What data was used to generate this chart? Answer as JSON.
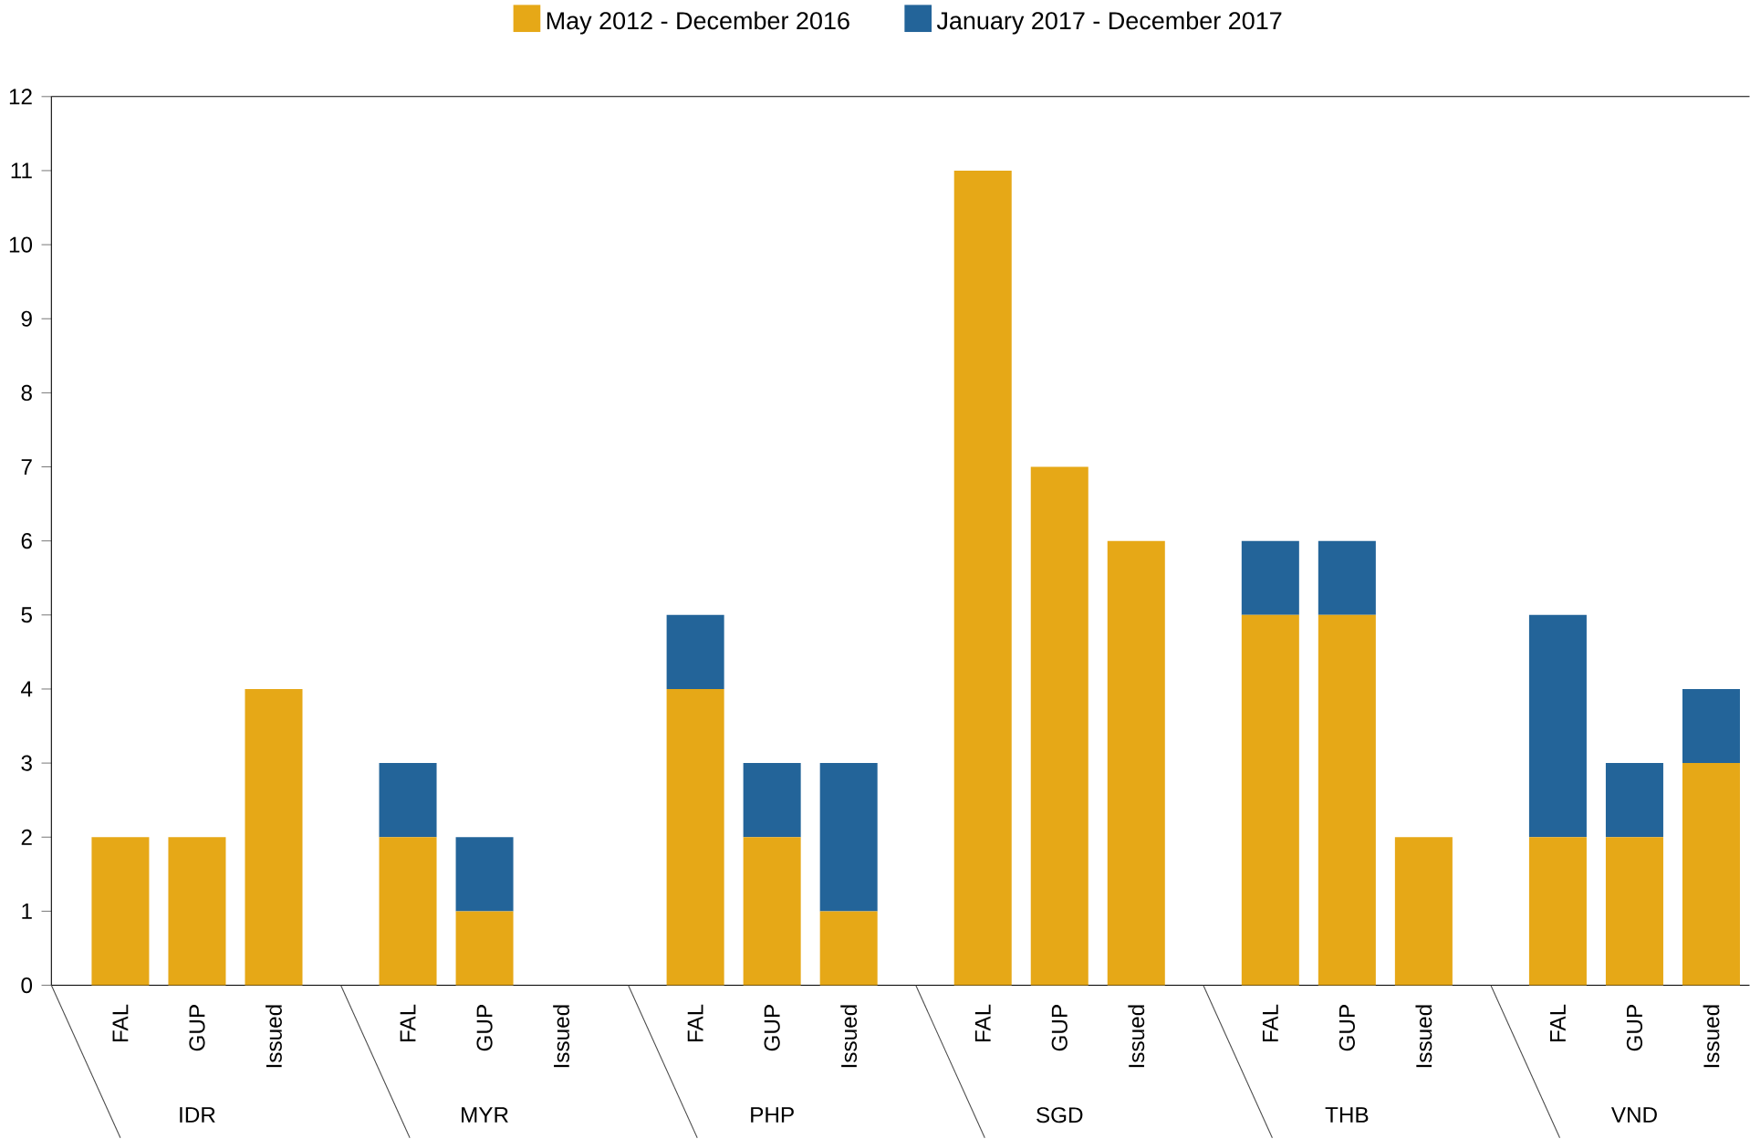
{
  "chart_data": {
    "type": "bar",
    "stacked": true,
    "legend": "top",
    "categories": [
      "FAL",
      "GUP",
      "Issued",
      "FAL",
      "GUP",
      "Issued",
      "FAL",
      "GUP",
      "Issued",
      "FAL",
      "GUP",
      "Issued",
      "FAL",
      "GUP",
      "Issued",
      "FAL",
      "GUP",
      "Issued"
    ],
    "series": [
      {
        "name": "May 2012 - December 2016",
        "color": "#e6a817",
        "values": [
          2,
          2,
          4,
          2,
          1,
          0,
          4,
          2,
          1,
          11,
          7,
          6,
          5,
          5,
          2,
          2,
          2,
          3
        ]
      },
      {
        "name": "January 2017 - December 2017",
        "color": "#236499",
        "values": [
          0,
          0,
          0,
          1,
          1,
          0,
          1,
          1,
          2,
          0,
          0,
          0,
          1,
          1,
          0,
          3,
          1,
          1
        ]
      }
    ],
    "annotations": [
      "IDR",
      "MYR",
      "PHP",
      "SGD",
      "THB",
      "VND"
    ],
    "ylim": [
      0,
      12
    ],
    "yticks": [
      0,
      1,
      2,
      3,
      4,
      5,
      6,
      7,
      8,
      9,
      10,
      11,
      12
    ]
  }
}
